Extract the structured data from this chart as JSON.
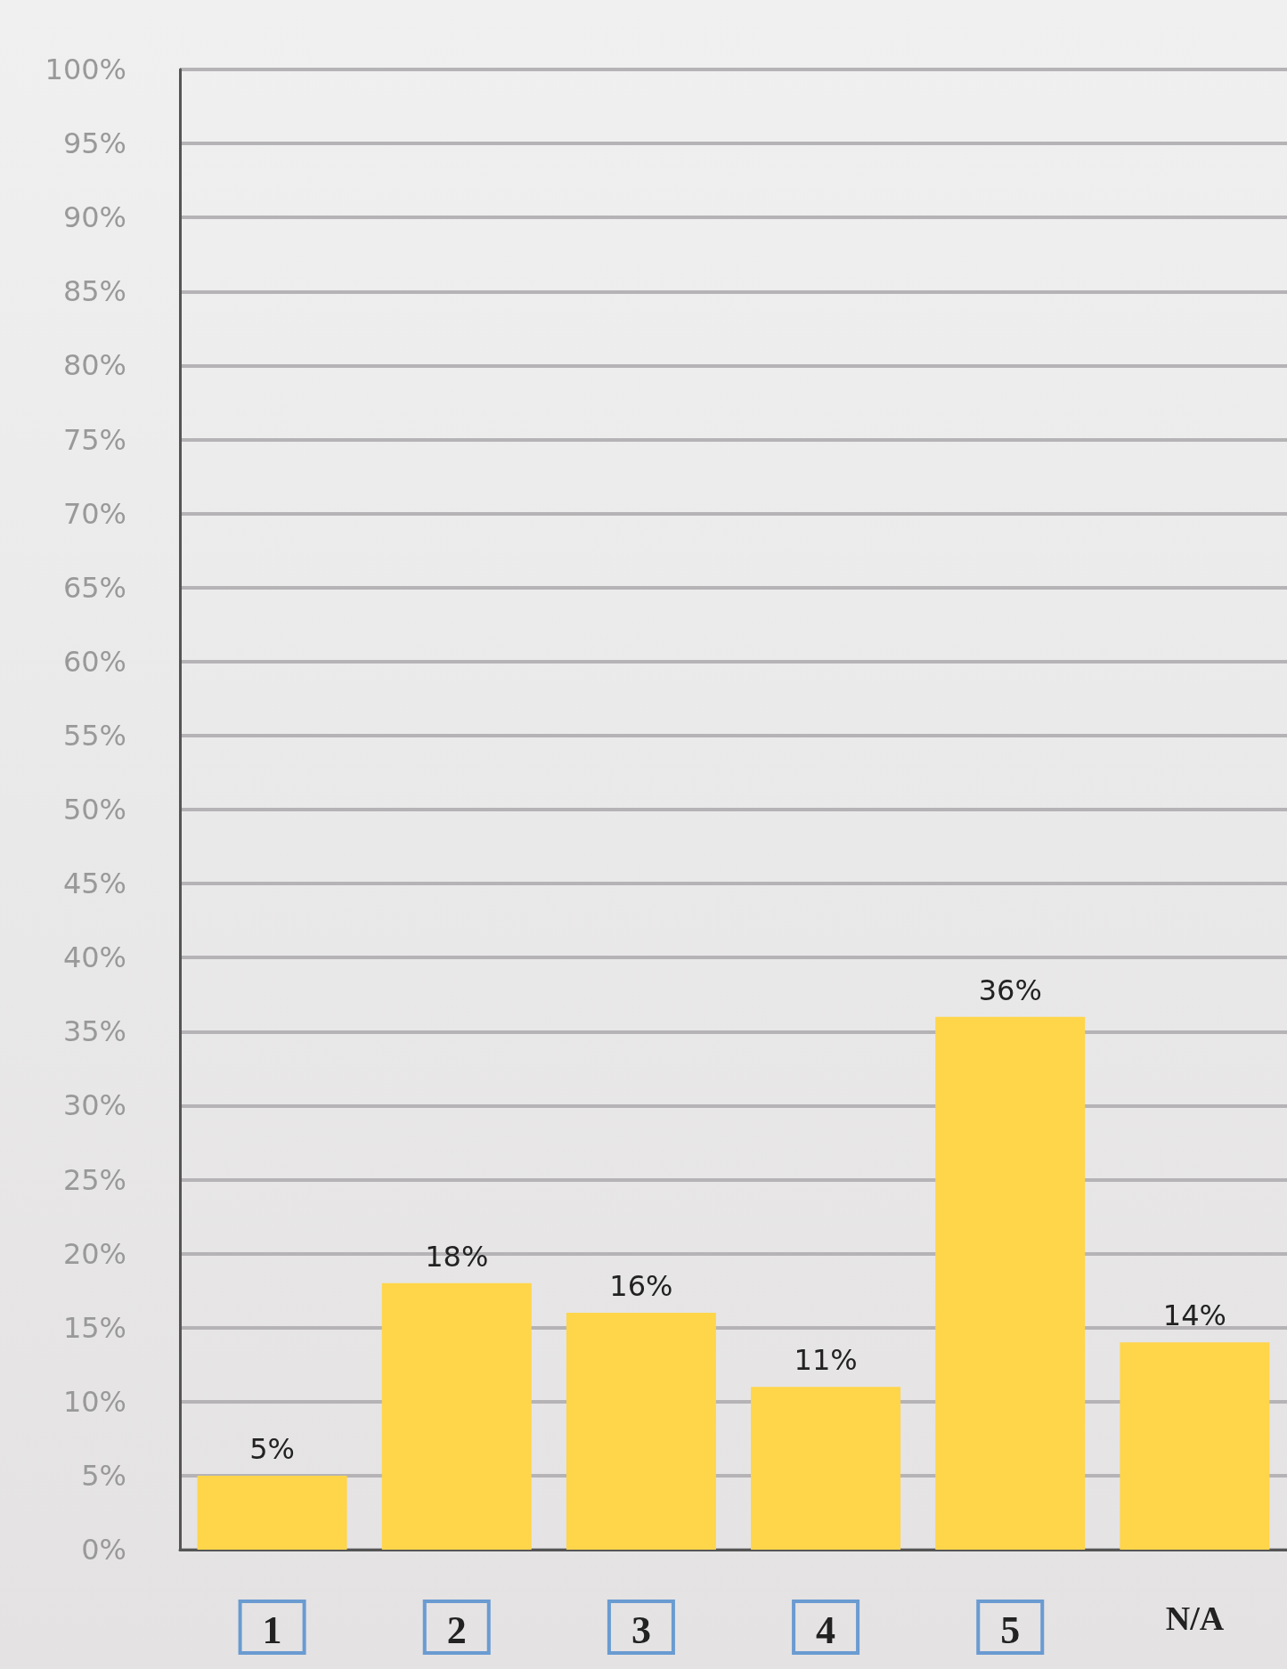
{
  "chart_data": {
    "type": "bar",
    "categories": [
      "1",
      "2",
      "3",
      "4",
      "5",
      "N/A"
    ],
    "values": [
      5,
      18,
      16,
      11,
      36,
      14
    ],
    "value_labels": [
      "5%",
      "18%",
      "16%",
      "11%",
      "36%",
      "14%"
    ],
    "color": "#ffd54a",
    "ylim": [
      0,
      100
    ],
    "yticks": [
      {
        "value": 0,
        "label": "0%"
      },
      {
        "value": 5,
        "label": "5%"
      },
      {
        "value": 10,
        "label": "10%"
      },
      {
        "value": 15,
        "label": "15%"
      },
      {
        "value": 20,
        "label": "20%"
      },
      {
        "value": 25,
        "label": "25%"
      },
      {
        "value": 30,
        "label": "30%"
      },
      {
        "value": 35,
        "label": "35%"
      },
      {
        "value": 40,
        "label": "40%"
      },
      {
        "value": 45,
        "label": "45%"
      },
      {
        "value": 50,
        "label": "50%"
      },
      {
        "value": 55,
        "label": "55%"
      },
      {
        "value": 60,
        "label": "60%"
      },
      {
        "value": 65,
        "label": "65%"
      },
      {
        "value": 70,
        "label": "70%"
      },
      {
        "value": 75,
        "label": "75%"
      },
      {
        "value": 80,
        "label": "80%"
      },
      {
        "value": 85,
        "label": "85%"
      },
      {
        "value": 90,
        "label": "90%"
      },
      {
        "value": 95,
        "label": "95%"
      },
      {
        "value": 100,
        "label": "100%"
      }
    ],
    "grid": "y"
  }
}
